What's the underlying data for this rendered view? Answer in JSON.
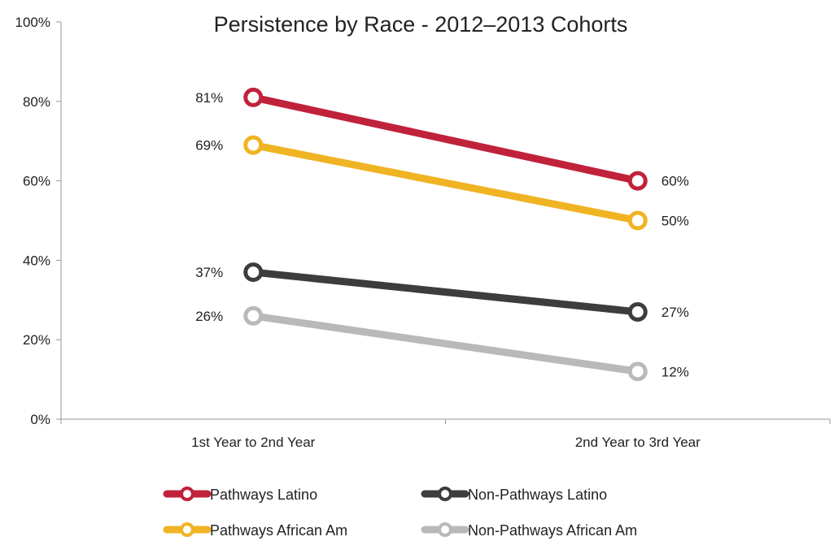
{
  "chart_data": {
    "type": "line",
    "title": "Persistence by Race - 2012–2013 Cohorts",
    "categories": [
      "1st Year to 2nd Year",
      "2nd Year to 3rd Year"
    ],
    "ylim": [
      0,
      100
    ],
    "yticks": [
      0,
      20,
      40,
      60,
      80,
      100
    ],
    "ytick_labels": [
      "0%",
      "20%",
      "40%",
      "60%",
      "80%",
      "100%"
    ],
    "grid": false,
    "legend_position": "bottom",
    "series": [
      {
        "name": "Pathways Latino",
        "values": [
          81,
          60
        ],
        "labels": [
          "81%",
          "60%"
        ],
        "color": "#c0223b"
      },
      {
        "name": "Pathways African Am",
        "values": [
          69,
          50
        ],
        "labels": [
          "69%",
          "50%"
        ],
        "color": "#f0b323"
      },
      {
        "name": "Non-Pathways Latino",
        "values": [
          37,
          27
        ],
        "labels": [
          "37%",
          "27%"
        ],
        "color": "#3d3d3d"
      },
      {
        "name": "Non-Pathways African Am",
        "values": [
          26,
          12
        ],
        "labels": [
          "26%",
          "12%"
        ],
        "color": "#b9b9b9"
      }
    ]
  }
}
